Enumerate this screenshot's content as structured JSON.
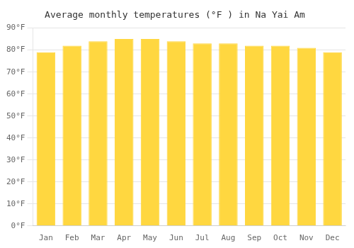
{
  "chart_data": {
    "type": "bar",
    "title": "Average monthly temperatures (°F ) in Na Yai Am",
    "categories": [
      "Jan",
      "Feb",
      "Mar",
      "Apr",
      "May",
      "Jun",
      "Jul",
      "Aug",
      "Sep",
      "Oct",
      "Nov",
      "Dec"
    ],
    "values": [
      79,
      82,
      84,
      85,
      85,
      84,
      83,
      83,
      82,
      82,
      81,
      79
    ],
    "color": "#FFD740",
    "ylim": [
      0,
      90
    ],
    "yticks": [
      {
        "value": 0,
        "label": "0°F"
      },
      {
        "value": 10,
        "label": "10°F"
      },
      {
        "value": 20,
        "label": "20°F"
      },
      {
        "value": 30,
        "label": "30°F"
      },
      {
        "value": 40,
        "label": "40°F"
      },
      {
        "value": 50,
        "label": "50°F"
      },
      {
        "value": 60,
        "label": "60°F"
      },
      {
        "value": 70,
        "label": "70°F"
      },
      {
        "value": 80,
        "label": "80°F"
      },
      {
        "value": 90,
        "label": "90°F"
      }
    ],
    "grid": "y"
  }
}
